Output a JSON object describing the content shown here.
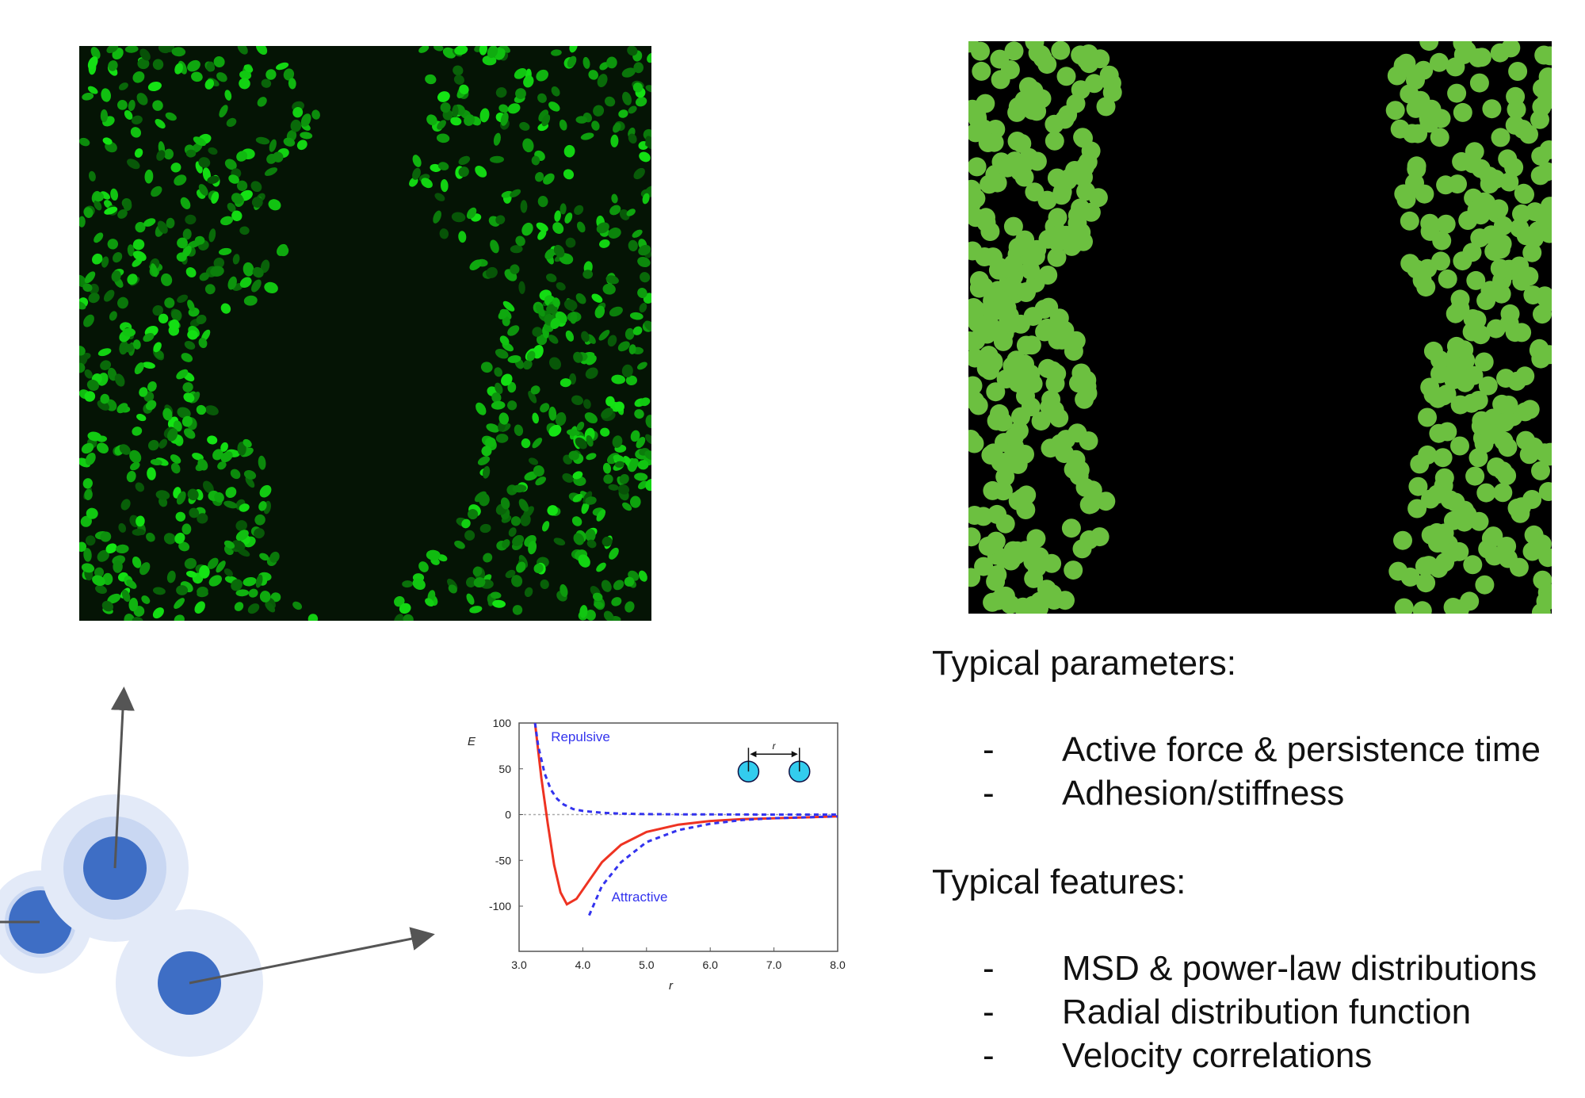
{
  "text": {
    "params_heading": "Typical parameters:",
    "params": [
      "Active force & persistence time",
      "Adhesion/stiffness"
    ],
    "features_heading": "Typical features:",
    "features": [
      "MSD & power-law distributions",
      "Radial distribution function",
      "Velocity correlations"
    ],
    "bullet": "-"
  },
  "colors": {
    "nucleus_green": "#22e022",
    "simulation_green": "#6cc040",
    "particle_blue": "#3e6ec5",
    "halo_blue": "#c9d7f2",
    "arrow_gray": "#555555",
    "curve_red": "#ee3322",
    "curve_blue": "#3333ee",
    "icon_cyan": "#33ccee"
  },
  "chart_data": {
    "type": "line",
    "title": "",
    "xlabel": "r",
    "ylabel": "E",
    "xlim": [
      3.0,
      8.0
    ],
    "ylim": [
      -110,
      100
    ],
    "xticks": [
      "3.0",
      "4.0",
      "5.0",
      "6.0",
      "7.0",
      "8.0"
    ],
    "yticks": [
      "100",
      "50",
      "0",
      "-50",
      "-100"
    ],
    "annotations": [
      "Repulsive",
      "Attractive",
      "r"
    ],
    "series": [
      {
        "name": "",
        "style": "solid",
        "color": "#ee3322",
        "x": [
          3.25,
          3.35,
          3.45,
          3.55,
          3.65,
          3.75,
          3.9,
          4.1,
          4.3,
          4.6,
          5.0,
          5.5,
          6.0,
          6.5,
          7.0,
          7.5,
          8.0
        ],
        "y": [
          100,
          40,
          -10,
          -55,
          -85,
          -98,
          -92,
          -72,
          -52,
          -33,
          -19,
          -11,
          -7,
          -5,
          -4,
          -3,
          -2
        ]
      },
      {
        "name": "",
        "style": "dashed",
        "color": "#3333ee",
        "x": [
          3.25,
          3.3,
          3.4,
          3.5,
          3.6,
          3.7,
          3.85,
          4.0,
          4.3,
          4.6,
          5.0,
          5.5,
          6.0,
          6.5,
          7.0,
          7.5,
          8.0
        ],
        "y": [
          100,
          75,
          45,
          27,
          17,
          11,
          6,
          4,
          2,
          1,
          0.5,
          0.3,
          0.2,
          0.1,
          0,
          0,
          0
        ]
      },
      {
        "name": "",
        "style": "dashed",
        "color": "#3333ee",
        "x": [
          4.1,
          4.3,
          4.6,
          5.0,
          5.5,
          6.0,
          6.5,
          7.0,
          7.5,
          8.0
        ],
        "y": [
          -110,
          -78,
          -52,
          -30,
          -17,
          -10,
          -6,
          -4,
          -3,
          -2
        ]
      }
    ]
  }
}
